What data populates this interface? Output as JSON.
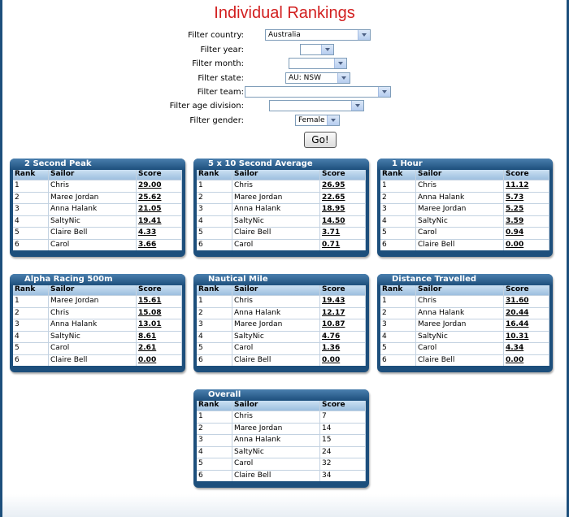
{
  "page": {
    "title": "Individual Rankings"
  },
  "filters": [
    {
      "label": "Filter country:",
      "value": "Australia"
    },
    {
      "label": "Filter year:",
      "value": ""
    },
    {
      "label": "Filter month:",
      "value": ""
    },
    {
      "label": "Filter state:",
      "value": "AU: NSW"
    },
    {
      "label": "Filter team:",
      "value": ""
    },
    {
      "label": "Filter age division:",
      "value": ""
    },
    {
      "label": "Filter gender:",
      "value": "Female"
    }
  ],
  "go_label": "Go!",
  "columns": {
    "rank": "Rank",
    "sailor": "Sailor",
    "score": "Score"
  },
  "panels": [
    {
      "title": "2 Second Peak",
      "linked": true,
      "rows": [
        [
          "1",
          "Chris",
          "29.00"
        ],
        [
          "2",
          "Maree Jordan",
          "25.62"
        ],
        [
          "3",
          "Anna Halank",
          "21.05"
        ],
        [
          "4",
          "SaltyNic",
          "19.41"
        ],
        [
          "5",
          "Claire Bell",
          "4.33"
        ],
        [
          "6",
          "Carol",
          "3.66"
        ]
      ]
    },
    {
      "title": "5 x 10 Second Average",
      "linked": true,
      "rows": [
        [
          "1",
          "Chris",
          "26.95"
        ],
        [
          "2",
          "Maree Jordan",
          "22.65"
        ],
        [
          "3",
          "Anna Halank",
          "18.95"
        ],
        [
          "4",
          "SaltyNic",
          "14.50"
        ],
        [
          "5",
          "Claire Bell",
          "3.71"
        ],
        [
          "6",
          "Carol",
          "0.71"
        ]
      ]
    },
    {
      "title": "1 Hour",
      "linked": true,
      "rows": [
        [
          "1",
          "Chris",
          "11.12"
        ],
        [
          "2",
          "Anna Halank",
          "5.73"
        ],
        [
          "3",
          "Maree Jordan",
          "5.25"
        ],
        [
          "4",
          "SaltyNic",
          "3.59"
        ],
        [
          "5",
          "Carol",
          "0.94"
        ],
        [
          "6",
          "Claire Bell",
          "0.00"
        ]
      ]
    },
    {
      "title": "Alpha Racing 500m",
      "linked": true,
      "rows": [
        [
          "1",
          "Maree Jordan",
          "15.61"
        ],
        [
          "2",
          "Chris",
          "15.08"
        ],
        [
          "3",
          "Anna Halank",
          "13.01"
        ],
        [
          "4",
          "SaltyNic",
          "8.61"
        ],
        [
          "5",
          "Carol",
          "2.61"
        ],
        [
          "6",
          "Claire Bell",
          "0.00"
        ]
      ]
    },
    {
      "title": "Nautical Mile",
      "linked": true,
      "rows": [
        [
          "1",
          "Chris",
          "19.43"
        ],
        [
          "2",
          "Anna Halank",
          "12.17"
        ],
        [
          "3",
          "Maree Jordan",
          "10.87"
        ],
        [
          "4",
          "SaltyNic",
          "4.76"
        ],
        [
          "5",
          "Carol",
          "1.36"
        ],
        [
          "6",
          "Claire Bell",
          "0.00"
        ]
      ]
    },
    {
      "title": "Distance Travelled",
      "linked": true,
      "rows": [
        [
          "1",
          "Chris",
          "31.60"
        ],
        [
          "2",
          "Anna Halank",
          "20.44"
        ],
        [
          "3",
          "Maree Jordan",
          "16.44"
        ],
        [
          "4",
          "SaltyNic",
          "10.31"
        ],
        [
          "5",
          "Carol",
          "4.34"
        ],
        [
          "6",
          "Claire Bell",
          "0.00"
        ]
      ]
    },
    {
      "title": "Overall",
      "linked": false,
      "rows": [
        [
          "1",
          "Chris",
          "7"
        ],
        [
          "2",
          "Maree Jordan",
          "14"
        ],
        [
          "3",
          "Anna Halank",
          "15"
        ],
        [
          "4",
          "SaltyNic",
          "24"
        ],
        [
          "5",
          "Carol",
          "32"
        ],
        [
          "6",
          "Claire Bell",
          "34"
        ]
      ]
    }
  ]
}
